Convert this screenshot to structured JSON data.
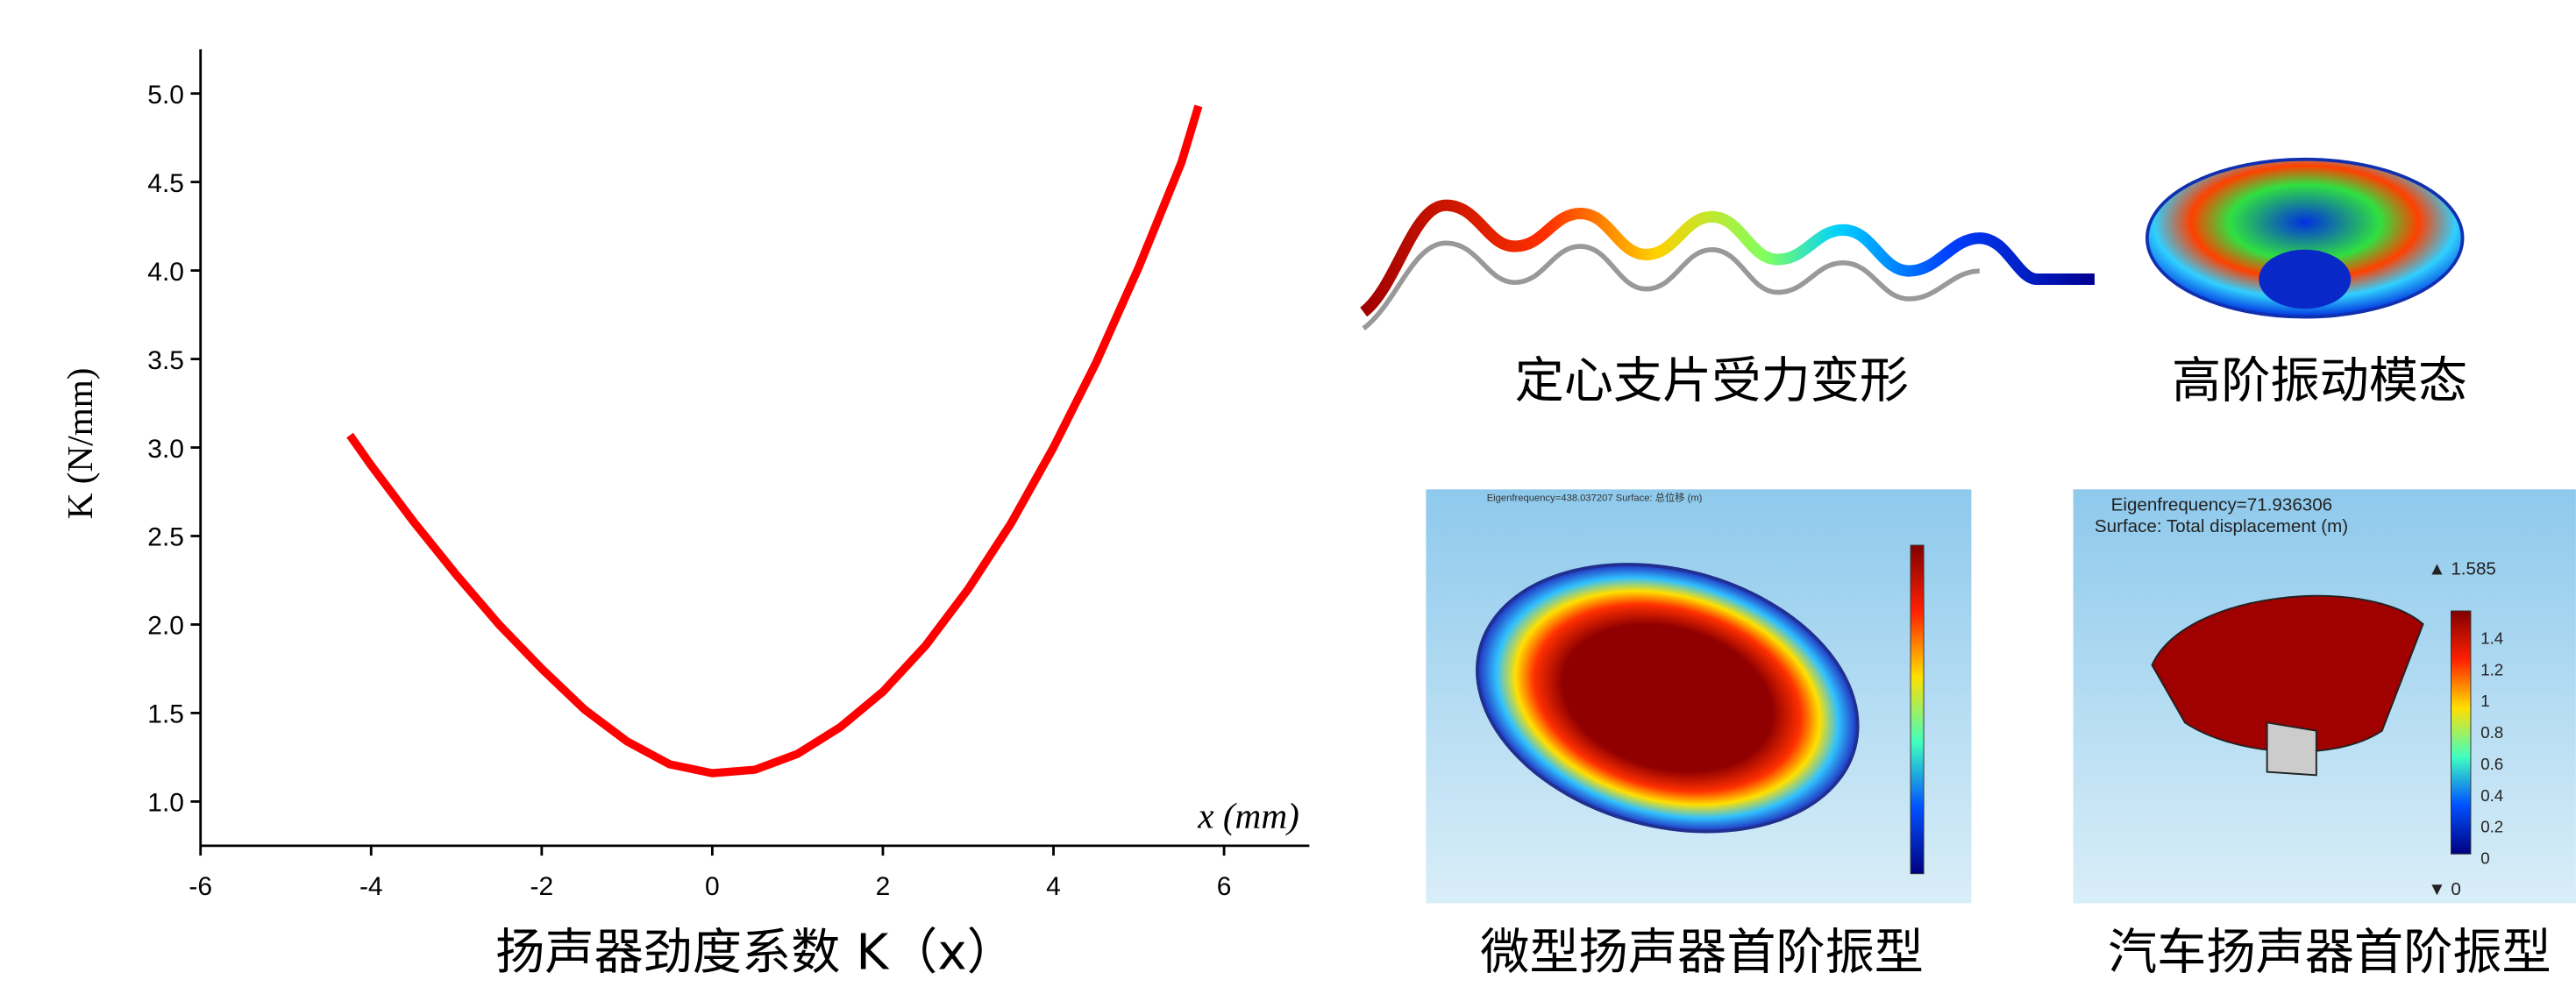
{
  "chart_data": {
    "type": "line",
    "x_label": "x (mm)",
    "y_label": "K (N/mm)",
    "caption": "扬声器劲度系数 K（x）",
    "x": [
      -4.25,
      -4,
      -3.5,
      -3,
      -2.5,
      -2,
      -1.5,
      -1,
      -0.5,
      0,
      0.5,
      1,
      1.5,
      2,
      2.5,
      3,
      3.5,
      4,
      4.5,
      5,
      5.5,
      5.7
    ],
    "values": [
      3.07,
      2.9,
      2.58,
      2.28,
      2.0,
      1.75,
      1.52,
      1.34,
      1.21,
      1.16,
      1.18,
      1.27,
      1.42,
      1.62,
      1.88,
      2.2,
      2.57,
      3.0,
      3.48,
      4.02,
      4.61,
      4.93
    ],
    "color": "#ff0000",
    "xlim": [
      -6,
      7
    ],
    "xticks": [
      -6,
      -4,
      -2,
      0,
      2,
      4,
      6
    ],
    "ylim": [
      0.75,
      5.25
    ],
    "yticks": [
      {
        "value": 1,
        "label": "1.0"
      },
      1.5,
      {
        "value": 2,
        "label": "2.0"
      },
      2.5,
      {
        "value": 3,
        "label": "3.0"
      },
      3.5,
      {
        "value": 4,
        "label": "4.0"
      },
      4.5,
      {
        "value": 5,
        "label": "5.0"
      }
    ]
  },
  "panels": [
    {
      "caption": "定心支片受力变形"
    },
    {
      "caption": "高阶振动模态"
    },
    {
      "caption": "微型扬声器首阶振型",
      "header": "Eigenfrequency=438.037207   Surface: 总位移 (m)"
    },
    {
      "caption": "汽车扬声器首阶振型",
      "header": "Eigenfrequency=71.936306",
      "subheader": "Surface: Total displacement (m)",
      "max": "▲ 1.585",
      "min": "▼ 0",
      "colorbar_labels": [
        "1.4",
        "1.2",
        "1",
        "0.8",
        "0.6",
        "0.4",
        "0.2",
        "0"
      ]
    }
  ]
}
